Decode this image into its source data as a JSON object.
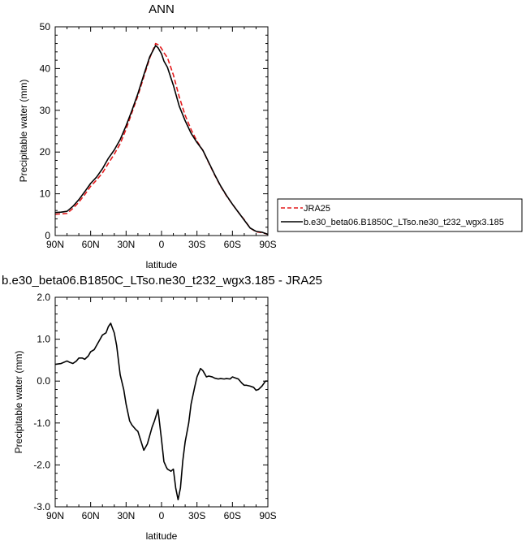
{
  "chart_data": [
    {
      "type": "line",
      "title": "ANN",
      "xlabel": "latitude",
      "ylabel": "Precipitable water (mm)",
      "xlim": [
        90,
        -90
      ],
      "ylim": [
        0,
        50
      ],
      "xticks": [
        90,
        60,
        30,
        0,
        -30,
        -60,
        -90
      ],
      "xtick_labels": [
        "90N",
        "60N",
        "30N",
        "0",
        "30S",
        "60S",
        "90S"
      ],
      "yticks": [
        0,
        10,
        20,
        30,
        40,
        50
      ],
      "ytick_labels": [
        "0",
        "10",
        "20",
        "30",
        "40",
        "50"
      ],
      "legend": "right",
      "series": [
        {
          "name": "JRA25",
          "color": "#e41a1c",
          "dashed": true,
          "x": [
            90,
            85,
            80,
            75,
            70,
            65,
            60,
            55,
            50,
            45,
            40,
            35,
            30,
            25,
            20,
            15,
            10,
            5,
            2,
            0,
            -2,
            -5,
            -10,
            -15,
            -20,
            -25,
            -30,
            -35,
            -40,
            -45,
            -50,
            -55,
            -60,
            -65,
            -70,
            -75,
            -80,
            -85,
            -90
          ],
          "y": [
            5.1,
            5.2,
            5.3,
            6.5,
            8.0,
            9.8,
            11.8,
            13.3,
            15.0,
            17.3,
            19.5,
            22.0,
            25.5,
            29.5,
            33.5,
            38.0,
            42.5,
            46.0,
            45.6,
            44.8,
            43.8,
            42.6,
            38.5,
            33.2,
            28.8,
            25.4,
            22.6,
            20.4,
            17.4,
            14.5,
            11.8,
            9.5,
            7.5,
            5.6,
            3.8,
            1.8,
            0.9,
            0.7,
            0.3
          ]
        },
        {
          "name": "b.e30_beta06.B1850C_LTso.ne30_t232_wgx3.185",
          "color": "#000000",
          "dashed": false,
          "x": [
            90,
            85,
            80,
            75,
            70,
            65,
            60,
            55,
            50,
            45,
            40,
            35,
            30,
            25,
            20,
            15,
            10,
            5,
            3,
            0,
            -2,
            -5,
            -10,
            -15,
            -20,
            -25,
            -30,
            -35,
            -40,
            -45,
            -50,
            -55,
            -60,
            -65,
            -70,
            -75,
            -80,
            -85,
            -90
          ],
          "y": [
            5.5,
            5.6,
            5.8,
            7.0,
            8.6,
            10.5,
            12.5,
            14.0,
            16.0,
            18.5,
            20.5,
            23.0,
            26.3,
            30.0,
            34.0,
            38.5,
            42.8,
            45.5,
            45.0,
            43.5,
            41.8,
            40.3,
            36.0,
            31.0,
            27.5,
            24.5,
            22.3,
            20.4,
            17.5,
            14.6,
            11.9,
            9.6,
            7.5,
            5.6,
            3.7,
            1.8,
            1.0,
            0.8,
            0.3
          ]
        }
      ]
    },
    {
      "type": "line",
      "title": "b.e30_beta06.B1850C_LTso.ne30_t232_wgx3.185 - JRA25",
      "xlabel": "latitude",
      "ylabel": "Precipitable water (mm)",
      "xlim": [
        90,
        -90
      ],
      "ylim": [
        -3.0,
        2.0
      ],
      "xticks": [
        90,
        60,
        30,
        0,
        -30,
        -60,
        -90
      ],
      "xtick_labels": [
        "90N",
        "60N",
        "30N",
        "0",
        "30S",
        "60S",
        "90S"
      ],
      "yticks": [
        -3.0,
        -2.0,
        -1.0,
        0.0,
        1.0,
        2.0
      ],
      "ytick_labels": [
        "-3.0",
        "-2.0",
        "-1.0",
        "0.0",
        "1.0",
        "2.0"
      ],
      "series": [
        {
          "color": "#000000",
          "x": [
            90,
            85,
            80,
            78,
            75,
            72,
            70,
            67,
            65,
            62,
            60,
            57,
            55,
            52,
            50,
            47,
            45,
            43,
            42,
            40,
            38,
            35,
            32,
            30,
            27,
            25,
            22,
            20,
            18,
            15,
            12,
            10,
            8,
            6,
            3,
            0,
            -2,
            -4,
            -5,
            -8,
            -10,
            -12,
            -14,
            -16,
            -18,
            -20,
            -23,
            -25,
            -28,
            -30,
            -33,
            -35,
            -38,
            -40,
            -43,
            -45,
            -48,
            -50,
            -53,
            -55,
            -58,
            -60,
            -62,
            -65,
            -68,
            -70,
            -72,
            -75,
            -78,
            -80,
            -82,
            -85,
            -88,
            -90
          ],
          "y": [
            0.4,
            0.42,
            0.48,
            0.45,
            0.42,
            0.48,
            0.55,
            0.55,
            0.52,
            0.6,
            0.7,
            0.75,
            0.85,
            1.0,
            1.1,
            1.15,
            1.3,
            1.38,
            1.3,
            1.15,
            0.85,
            0.15,
            -0.2,
            -0.55,
            -0.95,
            -1.05,
            -1.15,
            -1.2,
            -1.38,
            -1.65,
            -1.5,
            -1.3,
            -1.1,
            -0.95,
            -0.68,
            -1.4,
            -1.92,
            -2.05,
            -2.1,
            -2.15,
            -2.1,
            -2.55,
            -2.83,
            -2.55,
            -1.9,
            -1.45,
            -1.0,
            -0.55,
            -0.15,
            0.1,
            0.3,
            0.25,
            0.1,
            0.12,
            0.1,
            0.07,
            0.05,
            0.06,
            0.05,
            0.06,
            0.05,
            0.1,
            0.08,
            0.05,
            -0.05,
            -0.1,
            -0.1,
            -0.12,
            -0.15,
            -0.22,
            -0.2,
            -0.12,
            0.0,
            0.0
          ]
        }
      ]
    }
  ]
}
